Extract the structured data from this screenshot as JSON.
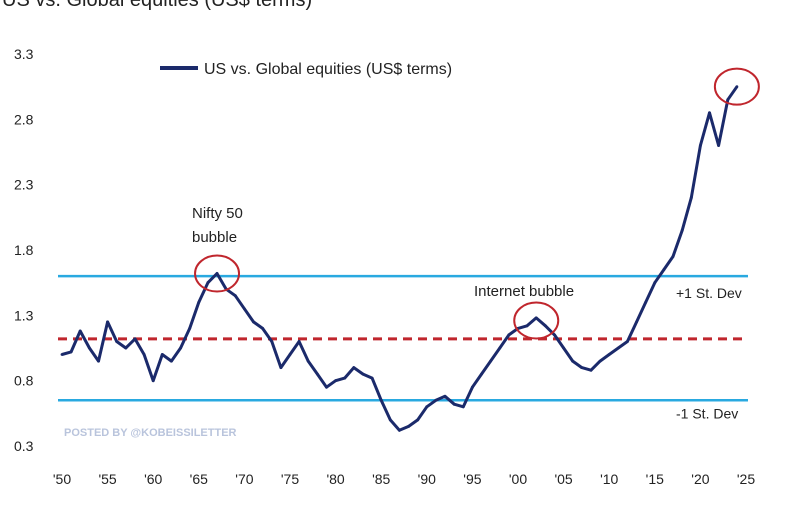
{
  "chart_data": {
    "type": "line",
    "title": "US vs. Global equities (US$ terms)",
    "xlabel": "",
    "ylabel": "",
    "xlim": [
      1950,
      2025
    ],
    "ylim": [
      0.3,
      3.3
    ],
    "x_ticks": [
      1950,
      1955,
      1960,
      1965,
      1970,
      1975,
      1980,
      1985,
      1990,
      1995,
      2000,
      2005,
      2010,
      2015,
      2020,
      2025
    ],
    "x_tick_labels": [
      "'50",
      "'55",
      "'60",
      "'65",
      "'70",
      "'75",
      "'80",
      "'85",
      "'90",
      "'95",
      "'00",
      "'05",
      "'10",
      "'15",
      "'20",
      "'25"
    ],
    "y_ticks": [
      0.3,
      0.8,
      1.3,
      1.8,
      2.3,
      2.8,
      3.3
    ],
    "y_tick_labels": [
      "0.3",
      "0.8",
      "1.3",
      "1.8",
      "2.3",
      "2.8",
      "3.3"
    ],
    "grid": false,
    "legend": {
      "position": "top-left",
      "label": "US vs. Global equities (US$ terms)"
    },
    "series": [
      {
        "name": "US vs. Global equities (US$ terms)",
        "color": "#1b2a6b",
        "x": [
          1950,
          1951,
          1952,
          1953,
          1954,
          1955,
          1956,
          1957,
          1958,
          1959,
          1960,
          1961,
          1962,
          1963,
          1964,
          1965,
          1966,
          1967,
          1968,
          1969,
          1970,
          1971,
          1972,
          1973,
          1974,
          1975,
          1976,
          1977,
          1978,
          1979,
          1980,
          1981,
          1982,
          1983,
          1984,
          1985,
          1986,
          1987,
          1988,
          1989,
          1990,
          1991,
          1992,
          1993,
          1994,
          1995,
          1996,
          1997,
          1998,
          1999,
          2000,
          2001,
          2002,
          2003,
          2004,
          2005,
          2006,
          2007,
          2008,
          2009,
          2010,
          2011,
          2012,
          2013,
          2014,
          2015,
          2016,
          2017,
          2018,
          2019,
          2020,
          2021,
          2022,
          2023,
          2024
        ],
        "y": [
          1.0,
          1.02,
          1.18,
          1.05,
          0.95,
          1.25,
          1.1,
          1.05,
          1.12,
          1.0,
          0.8,
          1.0,
          0.95,
          1.05,
          1.2,
          1.4,
          1.55,
          1.62,
          1.5,
          1.45,
          1.35,
          1.25,
          1.2,
          1.1,
          0.9,
          1.0,
          1.1,
          0.95,
          0.85,
          0.75,
          0.8,
          0.82,
          0.9,
          0.85,
          0.82,
          0.65,
          0.5,
          0.42,
          0.45,
          0.5,
          0.6,
          0.65,
          0.68,
          0.62,
          0.6,
          0.75,
          0.85,
          0.95,
          1.05,
          1.15,
          1.2,
          1.22,
          1.28,
          1.22,
          1.15,
          1.05,
          0.95,
          0.9,
          0.88,
          0.95,
          1.0,
          1.05,
          1.1,
          1.25,
          1.4,
          1.55,
          1.65,
          1.75,
          1.95,
          2.2,
          2.6,
          2.85,
          2.6,
          2.95,
          3.05
        ]
      }
    ],
    "reference_lines": [
      {
        "label": "+1 St. Dev",
        "value": 1.6,
        "color": "#29a9e0",
        "style": "solid"
      },
      {
        "label": "",
        "value": 1.12,
        "color": "#c0262d",
        "style": "dashed"
      },
      {
        "label": "-1 St. Dev",
        "value": 0.65,
        "color": "#29a9e0",
        "style": "solid"
      }
    ],
    "annotations": [
      {
        "text": [
          "Nifty 50",
          "bubble"
        ],
        "x": 1967,
        "y": 1.62
      },
      {
        "text": [
          "Internet bubble"
        ],
        "x": 2002,
        "y": 1.26
      },
      {
        "text": [],
        "x": 2024,
        "y": 3.05
      }
    ],
    "watermark": "POSTED BY @KOBEISSILETTER"
  }
}
